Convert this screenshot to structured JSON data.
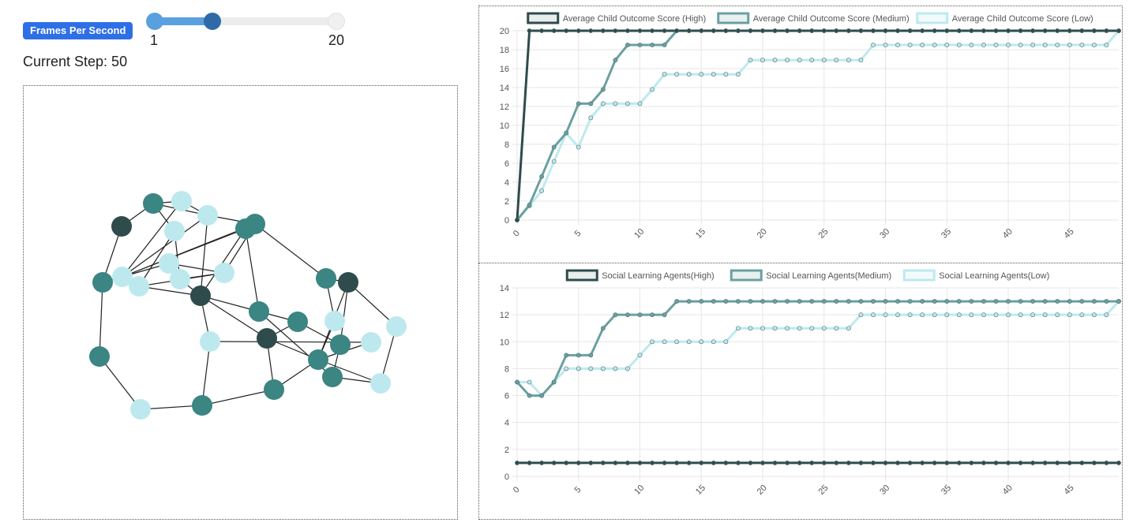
{
  "controls": {
    "fps_label": "Frames Per Second",
    "slider_min_label": "1",
    "slider_max_label": "20",
    "step_text": "Current Step: 50"
  },
  "colors": {
    "high": "#2f4b4c",
    "medium": "#3b8583",
    "low": "#bde9ee",
    "edge": "#222222",
    "grid": "#e6e6e6"
  },
  "network": {
    "node_types": [
      "high",
      "medium",
      "low"
    ]
  },
  "chart_data": [
    {
      "type": "line",
      "x": [
        0,
        1,
        2,
        3,
        4,
        5,
        6,
        7,
        8,
        9,
        10,
        11,
        12,
        13,
        14,
        15,
        16,
        17,
        18,
        19,
        20,
        21,
        22,
        23,
        24,
        25,
        26,
        27,
        28,
        29,
        30,
        31,
        32,
        33,
        34,
        35,
        36,
        37,
        38,
        39,
        40,
        41,
        42,
        43,
        44,
        45,
        46,
        47,
        48,
        49
      ],
      "xticks": [
        0,
        5,
        10,
        15,
        20,
        25,
        30,
        35,
        40,
        45
      ],
      "ylim": [
        0,
        20
      ],
      "yticks": [
        0,
        2,
        4,
        6,
        8,
        10,
        12,
        14,
        16,
        18,
        20
      ],
      "grid": true,
      "legend": "top",
      "series": [
        {
          "name": "Average Child Outcome Score (High)",
          "color": "#2f4b4c",
          "values": [
            0,
            20,
            20,
            20,
            20,
            20,
            20,
            20,
            20,
            20,
            20,
            20,
            20,
            20,
            20,
            20,
            20,
            20,
            20,
            20,
            20,
            20,
            20,
            20,
            20,
            20,
            20,
            20,
            20,
            20,
            20,
            20,
            20,
            20,
            20,
            20,
            20,
            20,
            20,
            20,
            20,
            20,
            20,
            20,
            20,
            20,
            20,
            20,
            20,
            20
          ]
        },
        {
          "name": "Average Child Outcome Score (Medium)",
          "color": "#6ba0a1",
          "values": [
            0,
            1.6,
            4.6,
            7.7,
            9.2,
            12.3,
            12.3,
            13.8,
            16.9,
            18.5,
            18.5,
            18.5,
            18.5,
            20,
            20,
            20,
            20,
            20,
            20,
            20,
            20,
            20,
            20,
            20,
            20,
            20,
            20,
            20,
            20,
            20,
            20,
            20,
            20,
            20,
            20,
            20,
            20,
            20,
            20,
            20,
            20,
            20,
            20,
            20,
            20,
            20,
            20,
            20,
            20,
            20
          ]
        },
        {
          "name": "Average Child Outcome Score (Low)",
          "color": "#bde9ee",
          "values": [
            0,
            1.5,
            3.1,
            6.2,
            9.2,
            7.7,
            10.8,
            12.3,
            12.3,
            12.3,
            12.3,
            13.8,
            15.4,
            15.4,
            15.4,
            15.4,
            15.4,
            15.4,
            15.4,
            16.9,
            16.9,
            16.9,
            16.9,
            16.9,
            16.9,
            16.9,
            16.9,
            16.9,
            16.9,
            18.5,
            18.5,
            18.5,
            18.5,
            18.5,
            18.5,
            18.5,
            18.5,
            18.5,
            18.5,
            18.5,
            18.5,
            18.5,
            18.5,
            18.5,
            18.5,
            18.5,
            18.5,
            18.5,
            18.5,
            20
          ]
        }
      ]
    },
    {
      "type": "line",
      "x": [
        0,
        1,
        2,
        3,
        4,
        5,
        6,
        7,
        8,
        9,
        10,
        11,
        12,
        13,
        14,
        15,
        16,
        17,
        18,
        19,
        20,
        21,
        22,
        23,
        24,
        25,
        26,
        27,
        28,
        29,
        30,
        31,
        32,
        33,
        34,
        35,
        36,
        37,
        38,
        39,
        40,
        41,
        42,
        43,
        44,
        45,
        46,
        47,
        48,
        49
      ],
      "xticks": [
        0,
        5,
        10,
        15,
        20,
        25,
        30,
        35,
        40,
        45
      ],
      "ylim": [
        0,
        14
      ],
      "yticks": [
        0,
        2,
        4,
        6,
        8,
        10,
        12,
        14
      ],
      "grid": true,
      "legend": "top",
      "series": [
        {
          "name": "Social Learning Agents(High)",
          "color": "#2f4b4c",
          "values": [
            1,
            1,
            1,
            1,
            1,
            1,
            1,
            1,
            1,
            1,
            1,
            1,
            1,
            1,
            1,
            1,
            1,
            1,
            1,
            1,
            1,
            1,
            1,
            1,
            1,
            1,
            1,
            1,
            1,
            1,
            1,
            1,
            1,
            1,
            1,
            1,
            1,
            1,
            1,
            1,
            1,
            1,
            1,
            1,
            1,
            1,
            1,
            1,
            1,
            1
          ]
        },
        {
          "name": "Social Learning Agents(Medium)",
          "color": "#6ba0a1",
          "values": [
            7,
            6,
            6,
            7,
            9,
            9,
            9,
            11,
            12,
            12,
            12,
            12,
            12,
            13,
            13,
            13,
            13,
            13,
            13,
            13,
            13,
            13,
            13,
            13,
            13,
            13,
            13,
            13,
            13,
            13,
            13,
            13,
            13,
            13,
            13,
            13,
            13,
            13,
            13,
            13,
            13,
            13,
            13,
            13,
            13,
            13,
            13,
            13,
            13,
            13
          ]
        },
        {
          "name": "Social Learning Agents(Low)",
          "color": "#bde9ee",
          "values": [
            7,
            7,
            6,
            7,
            8,
            8,
            8,
            8,
            8,
            8,
            9,
            10,
            10,
            10,
            10,
            10,
            10,
            10,
            11,
            11,
            11,
            11,
            11,
            11,
            11,
            11,
            11,
            11,
            12,
            12,
            12,
            12,
            12,
            12,
            12,
            12,
            12,
            12,
            12,
            12,
            12,
            12,
            12,
            12,
            12,
            12,
            12,
            12,
            12,
            13
          ]
        }
      ]
    }
  ]
}
